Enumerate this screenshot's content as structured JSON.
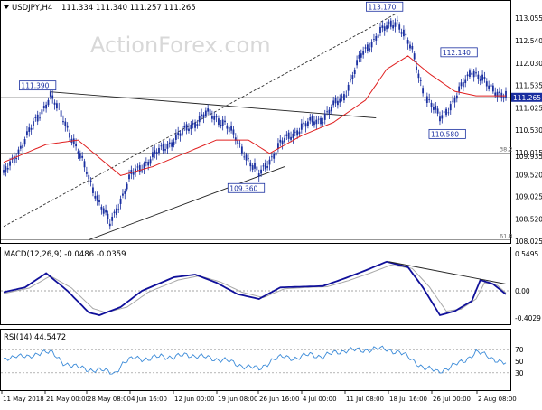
{
  "header": {
    "symbol": "USDJPY,H4",
    "ohlc": "111.334 111.340 111.257 111.265"
  },
  "watermark": "ActionForex.com",
  "colors": {
    "candle": "#1a2fa0",
    "ma": "#e02020",
    "macd": "#10109a",
    "signal": "#a8a8a8",
    "rsi": "#3a8ad8",
    "price_label_bg": "#1a2fa0",
    "grid_dash": "#888888"
  },
  "chart_data": [
    {
      "type": "candlestick",
      "pane": "price",
      "ylim": [
        108.0,
        113.4
      ],
      "y_ticks": [
        "113.055",
        "112.540",
        "112.030",
        "111.535",
        "111.025",
        "110.530",
        "110.015",
        "109.935",
        "109.520",
        "109.025",
        "108.520",
        "108.025"
      ],
      "current_price": {
        "value": 111.265,
        "label": "111.265"
      },
      "fib_levels": [
        {
          "value": 110.01,
          "label": "38.2"
        },
        {
          "value": 108.05,
          "label": "61.8"
        }
      ],
      "annotations": [
        {
          "label": "111.390",
          "value": 111.39,
          "index": 22
        },
        {
          "label": "109.360",
          "value": 109.36,
          "index": 120
        },
        {
          "label": "113.170",
          "value": 113.17,
          "index": 185
        },
        {
          "label": "110.580",
          "value": 110.58,
          "index": 205
        },
        {
          "label": "112.140",
          "value": 112.14,
          "index": 220
        }
      ],
      "close_path": [
        [
          0,
          109.5
        ],
        [
          10,
          110.3
        ],
        [
          22,
          111.3
        ],
        [
          30,
          110.6
        ],
        [
          38,
          109.7
        ],
        [
          44,
          109.0
        ],
        [
          50,
          108.4
        ],
        [
          60,
          109.5
        ],
        [
          72,
          110.0
        ],
        [
          85,
          110.5
        ],
        [
          95,
          110.9
        ],
        [
          104,
          110.7
        ],
        [
          112,
          110.1
        ],
        [
          120,
          109.5
        ],
        [
          130,
          110.2
        ],
        [
          140,
          110.6
        ],
        [
          150,
          110.8
        ],
        [
          160,
          111.3
        ],
        [
          168,
          112.2
        ],
        [
          176,
          112.7
        ],
        [
          185,
          113.0
        ],
        [
          192,
          112.3
        ],
        [
          198,
          111.3
        ],
        [
          205,
          110.8
        ],
        [
          212,
          111.2
        ],
        [
          220,
          111.9
        ],
        [
          228,
          111.5
        ],
        [
          236,
          111.3
        ]
      ],
      "ma_path": [
        [
          0,
          109.8
        ],
        [
          20,
          110.2
        ],
        [
          35,
          110.3
        ],
        [
          45,
          109.9
        ],
        [
          55,
          109.5
        ],
        [
          70,
          109.7
        ],
        [
          85,
          110.0
        ],
        [
          100,
          110.3
        ],
        [
          115,
          110.3
        ],
        [
          125,
          110.0
        ],
        [
          140,
          110.4
        ],
        [
          155,
          110.7
        ],
        [
          170,
          111.2
        ],
        [
          180,
          111.9
        ],
        [
          190,
          112.2
        ],
        [
          200,
          111.8
        ],
        [
          212,
          111.4
        ],
        [
          222,
          111.3
        ],
        [
          236,
          111.3
        ]
      ]
    },
    {
      "type": "line",
      "pane": "macd",
      "title": "MACD(12,26,9) -0.0486 -0.0359",
      "ylim": [
        -0.48,
        0.6
      ],
      "y_ticks": [
        "0.5495",
        "0.00",
        "-0.4029"
      ],
      "series": [
        {
          "name": "macd",
          "points": [
            [
              0,
              -0.02
            ],
            [
              10,
              0.05
            ],
            [
              20,
              0.26
            ],
            [
              30,
              0.0
            ],
            [
              40,
              -0.32
            ],
            [
              45,
              -0.36
            ],
            [
              55,
              -0.24
            ],
            [
              65,
              0.0
            ],
            [
              80,
              0.2
            ],
            [
              90,
              0.24
            ],
            [
              100,
              0.12
            ],
            [
              110,
              -0.05
            ],
            [
              120,
              -0.12
            ],
            [
              130,
              0.05
            ],
            [
              140,
              0.06
            ],
            [
              150,
              0.07
            ],
            [
              160,
              0.18
            ],
            [
              170,
              0.3
            ],
            [
              180,
              0.43
            ],
            [
              190,
              0.35
            ],
            [
              197,
              0.05
            ],
            [
              205,
              -0.36
            ],
            [
              212,
              -0.3
            ],
            [
              220,
              -0.15
            ],
            [
              224,
              0.16
            ],
            [
              230,
              0.1
            ],
            [
              236,
              -0.05
            ]
          ]
        },
        {
          "name": "signal",
          "points": [
            [
              0,
              -0.04
            ],
            [
              12,
              0.04
            ],
            [
              22,
              0.22
            ],
            [
              32,
              0.04
            ],
            [
              42,
              -0.26
            ],
            [
              48,
              -0.32
            ],
            [
              58,
              -0.24
            ],
            [
              68,
              -0.02
            ],
            [
              82,
              0.16
            ],
            [
              92,
              0.22
            ],
            [
              102,
              0.13
            ],
            [
              112,
              -0.02
            ],
            [
              122,
              -0.1
            ],
            [
              132,
              0.03
            ],
            [
              142,
              0.05
            ],
            [
              152,
              0.06
            ],
            [
              162,
              0.15
            ],
            [
              172,
              0.26
            ],
            [
              182,
              0.38
            ],
            [
              192,
              0.33
            ],
            [
              200,
              0.06
            ],
            [
              208,
              -0.3
            ],
            [
              215,
              -0.27
            ],
            [
              222,
              -0.12
            ],
            [
              226,
              0.12
            ],
            [
              232,
              0.08
            ],
            [
              236,
              -0.03
            ]
          ]
        }
      ]
    },
    {
      "type": "line",
      "pane": "rsi",
      "title": "RSI(14) 44.5472",
      "ylim": [
        0,
        100
      ],
      "y_ticks": [
        "70",
        "50",
        "30"
      ],
      "series": [
        {
          "name": "rsi",
          "points": [
            [
              0,
              50
            ],
            [
              6,
              62
            ],
            [
              12,
              55
            ],
            [
              18,
              68
            ],
            [
              22,
              65
            ],
            [
              28,
              48
            ],
            [
              34,
              40
            ],
            [
              40,
              36
            ],
            [
              46,
              34
            ],
            [
              52,
              30
            ],
            [
              56,
              45
            ],
            [
              62,
              58
            ],
            [
              68,
              52
            ],
            [
              74,
              60
            ],
            [
              80,
              56
            ],
            [
              86,
              62
            ],
            [
              92,
              58
            ],
            [
              98,
              55
            ],
            [
              104,
              52
            ],
            [
              110,
              44
            ],
            [
              116,
              40
            ],
            [
              120,
              36
            ],
            [
              126,
              52
            ],
            [
              132,
              58
            ],
            [
              138,
              55
            ],
            [
              144,
              62
            ],
            [
              150,
              58
            ],
            [
              156,
              65
            ],
            [
              162,
              70
            ],
            [
              168,
              68
            ],
            [
              174,
              72
            ],
            [
              180,
              70
            ],
            [
              186,
              66
            ],
            [
              192,
              52
            ],
            [
              198,
              38
            ],
            [
              204,
              32
            ],
            [
              210,
              40
            ],
            [
              216,
              50
            ],
            [
              222,
              66
            ],
            [
              228,
              58
            ],
            [
              232,
              52
            ],
            [
              236,
              45
            ]
          ]
        }
      ]
    }
  ],
  "x_axis_labels": [
    "11 May 2018",
    "21 May 00:00",
    "28 May 08:00",
    "4 Jun 16:00",
    "12 Jun 00:00",
    "19 Jun 08:00",
    "26 Jun 16:00",
    "4 Jul 00:00",
    "11 Jul 08:00",
    "18 Jul 16:00",
    "26 Jul 00:00",
    "2 Aug 08:00"
  ]
}
